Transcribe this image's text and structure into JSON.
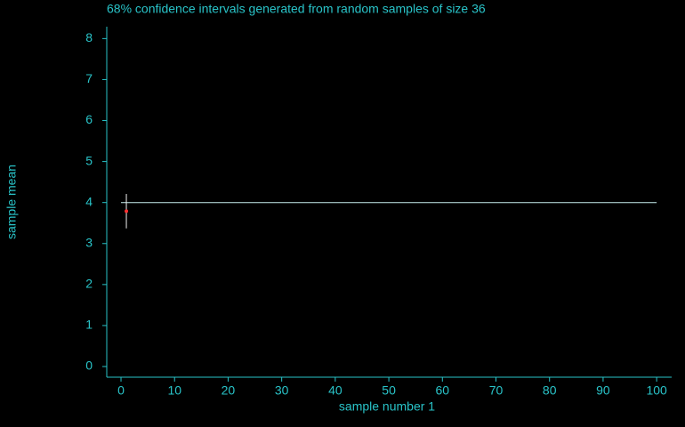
{
  "chart_data": {
    "type": "errorbar",
    "title": "68% confidence intervals generated from random samples of size 36",
    "xlabel": "sample number 1",
    "ylabel": "sample mean",
    "x": [
      1
    ],
    "values": [
      3.79
    ],
    "errors": [
      0.42
    ],
    "reference": {
      "value": 4,
      "x": [
        0,
        100
      ],
      "color": "#c8f0f0"
    },
    "point_color": "#ff3030",
    "bar_color": "#f0f0f0",
    "axis_color": "#29c3c8",
    "xlim": [
      -2.66,
      102.8
    ],
    "ylim": [
      -0.26,
      8.29
    ],
    "xticks": [
      0,
      10,
      20,
      30,
      40,
      50,
      60,
      70,
      80,
      90,
      100
    ],
    "yticks": [
      0,
      1,
      2,
      3,
      4,
      5,
      6,
      7,
      8
    ]
  }
}
